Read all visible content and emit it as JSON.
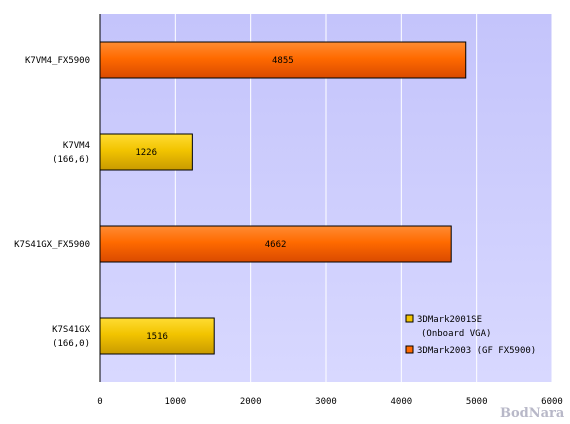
{
  "chart_data": {
    "type": "bar",
    "orientation": "horizontal",
    "categories": [
      {
        "lines": [
          "K7VM4_FX5900"
        ]
      },
      {
        "lines": [
          "K7VM4",
          "(166,6)"
        ]
      },
      {
        "lines": [
          "K7S41GX_FX5900"
        ]
      },
      {
        "lines": [
          "K7S41GX",
          "(166,0)"
        ]
      }
    ],
    "series": [
      {
        "name_lines": [
          "3DMark2001SE",
          "(Onboard VGA)"
        ],
        "color": "#f2c400",
        "values": [
          null,
          1226,
          null,
          1516
        ]
      },
      {
        "name_lines": [
          "3DMark2003 (GF FX5900)"
        ],
        "color": "#ff6a00",
        "values": [
          4855,
          null,
          4662,
          null
        ]
      }
    ],
    "data_labels": [
      "4855",
      "1226",
      "4662",
      "1516"
    ],
    "xlim": [
      0,
      6000
    ],
    "x_ticks": [
      "0",
      "1000",
      "2000",
      "3000",
      "4000",
      "5000",
      "6000"
    ],
    "grid": true,
    "legend_position": "bottom-right",
    "plot_background": "#ccccff"
  },
  "watermark": "BodNara"
}
